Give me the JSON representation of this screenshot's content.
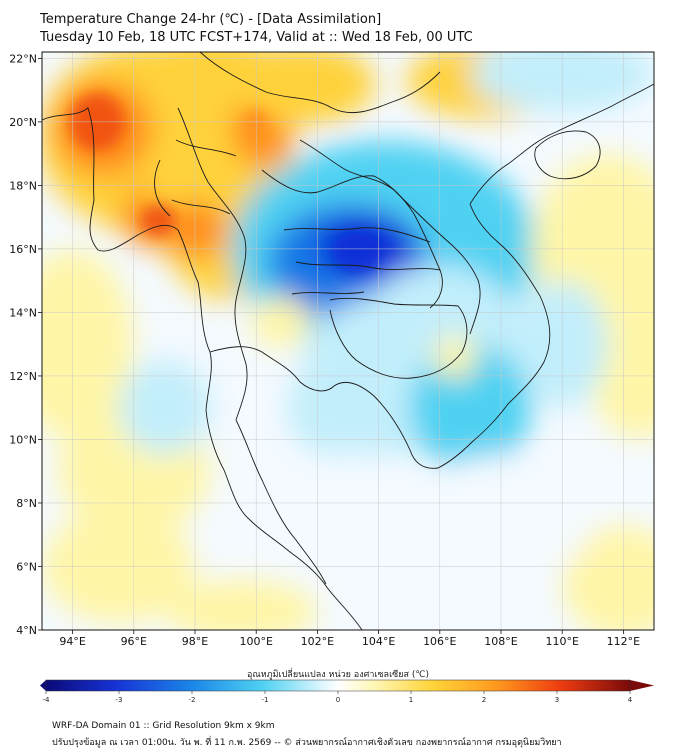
{
  "header": {
    "title_line1": "Temperature Change 24-hr (℃) - [Data Assimilation]",
    "title_line2": "Tuesday 10 Feb, 18 UTC FCST+174, Valid at :: Wed 18 Feb, 00 UTC"
  },
  "map": {
    "lon_ticks": [
      "94°E",
      "96°E",
      "98°E",
      "100°E",
      "102°E",
      "104°E",
      "106°E",
      "108°E",
      "110°E",
      "112°E"
    ],
    "lon_values": [
      94,
      96,
      98,
      100,
      102,
      104,
      106,
      108,
      110,
      112
    ],
    "lat_ticks": [
      "22°N",
      "20°N",
      "18°N",
      "16°N",
      "14°N",
      "12°N",
      "10°N",
      "8°N",
      "6°N",
      "4°N"
    ],
    "lat_values": [
      22,
      20,
      18,
      16,
      14,
      12,
      10,
      8,
      6,
      4
    ],
    "lon_range": [
      93,
      113
    ],
    "lat_range": [
      4,
      22.2
    ],
    "colors": {
      "neutral": "#f4faff",
      "warm_light": "#fff6a8",
      "warm_mid": "#ffd23a",
      "warm_strong": "#ff8c1a",
      "hot": "#ee4a0e",
      "cool_light": "#c2eefb",
      "cool_mid": "#4fd1f2",
      "cool_strong": "#1778e6",
      "cold": "#0b2ed8",
      "border": "#1a1a1a"
    }
  },
  "colorbar": {
    "title": "อุณหภูมิเปลี่ยนแปลง หน่วย องศาเซลเซียส (℃)",
    "ticks": [
      "-4",
      "-3",
      "-2",
      "-1",
      "0",
      "1",
      "2",
      "3",
      "4"
    ],
    "tick_values": [
      -4,
      -3,
      -2,
      -1,
      0,
      1,
      2,
      3,
      4
    ],
    "range": [
      -4,
      4
    ]
  },
  "footer": {
    "line1": "WRF-DA Domain 01 :: Grid Resolution 9km x 9km",
    "line2": "ปรับปรุงข้อมูล ณ เวลา 01:00น. วัน พ. ที่ 11 ก.พ. 2569 -- © ส่วนพยากรณ์อากาศเชิงตัวเลข กองพยากรณ์อากาศ กรมอุตุนิยมวิทยา"
  }
}
